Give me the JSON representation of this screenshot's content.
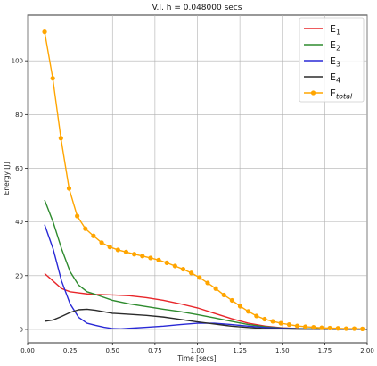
{
  "chart_data": {
    "type": "line",
    "title": "V.I. h = 0.048000 secs",
    "xlabel": "Time [secs]",
    "ylabel": "Energy [J]",
    "xlim": [
      0.0,
      2.0
    ],
    "ylim": [
      -5,
      117
    ],
    "xticks": [
      0.0,
      0.25,
      0.5,
      0.75,
      1.0,
      1.25,
      1.5,
      1.75,
      2.0
    ],
    "xtick_labels": [
      "0.00",
      "0.25",
      "0.50",
      "0.75",
      "1.00",
      "1.25",
      "1.50",
      "1.75",
      "2.00"
    ],
    "yticks": [
      0,
      20,
      40,
      60,
      80,
      100
    ],
    "ytick_labels": [
      "0",
      "20",
      "40",
      "60",
      "80",
      "100"
    ],
    "grid": true,
    "legend_position": "top-right",
    "series": [
      {
        "base": "E",
        "sub": "1",
        "color": "#e8262a",
        "marker": "none",
        "x": [
          0.1,
          0.15,
          0.2,
          0.25,
          0.3,
          0.35,
          0.4,
          0.5,
          0.6,
          0.7,
          0.8,
          0.9,
          1.0,
          1.1,
          1.2,
          1.3,
          1.4,
          1.5,
          1.6,
          1.7,
          1.8,
          1.9,
          2.0
        ],
        "y": [
          20.8,
          18.0,
          15.2,
          14.0,
          13.6,
          13.2,
          13.0,
          12.8,
          12.5,
          11.8,
          10.8,
          9.5,
          8.0,
          6.0,
          4.0,
          2.3,
          1.2,
          0.6,
          0.3,
          0.2,
          0.1,
          0.1,
          0.1
        ]
      },
      {
        "base": "E",
        "sub": "2",
        "color": "#2e8b2e",
        "marker": "none",
        "x": [
          0.1,
          0.15,
          0.2,
          0.25,
          0.3,
          0.35,
          0.4,
          0.5,
          0.6,
          0.7,
          0.8,
          0.9,
          1.0,
          1.1,
          1.2,
          1.3,
          1.4,
          1.5,
          1.6,
          1.7,
          1.8,
          1.9,
          2.0
        ],
        "y": [
          48.2,
          40.0,
          30.0,
          21.5,
          16.5,
          14.0,
          13.0,
          10.8,
          9.5,
          8.5,
          7.5,
          6.6,
          5.5,
          4.3,
          3.0,
          1.8,
          1.0,
          0.5,
          0.3,
          0.2,
          0.1,
          0.1,
          0.1
        ]
      },
      {
        "base": "E",
        "sub": "3",
        "color": "#2929d6",
        "marker": "none",
        "x": [
          0.1,
          0.15,
          0.2,
          0.25,
          0.3,
          0.35,
          0.4,
          0.45,
          0.5,
          0.55,
          0.6,
          0.7,
          0.8,
          0.9,
          1.0,
          1.1,
          1.2,
          1.3,
          1.4,
          1.5,
          1.6,
          1.7,
          1.8,
          1.9,
          2.0
        ],
        "y": [
          39.0,
          30.0,
          18.0,
          9.5,
          4.5,
          2.3,
          1.5,
          0.8,
          0.3,
          0.2,
          0.4,
          0.8,
          1.2,
          1.8,
          2.3,
          2.3,
          1.8,
          1.2,
          0.7,
          0.4,
          0.2,
          0.1,
          0.1,
          0.1,
          0.1
        ]
      },
      {
        "base": "E",
        "sub": "4",
        "color": "#2b2b2b",
        "marker": "none",
        "x": [
          0.1,
          0.15,
          0.2,
          0.25,
          0.3,
          0.35,
          0.4,
          0.5,
          0.6,
          0.7,
          0.8,
          0.9,
          1.0,
          1.1,
          1.2,
          1.3,
          1.4,
          1.5,
          1.6,
          1.7,
          1.8,
          1.9,
          2.0
        ],
        "y": [
          3.0,
          3.5,
          4.8,
          6.3,
          7.3,
          7.5,
          7.1,
          6.0,
          5.6,
          5.2,
          4.6,
          3.7,
          2.8,
          2.0,
          1.2,
          0.7,
          0.3,
          0.2,
          0.1,
          0.1,
          0.1,
          0.1,
          0.1
        ]
      },
      {
        "base": "E",
        "sub": "total",
        "color": "#ffa500",
        "marker": "circle",
        "x": [
          0.1,
          0.148,
          0.196,
          0.244,
          0.292,
          0.34,
          0.388,
          0.436,
          0.484,
          0.532,
          0.58,
          0.628,
          0.676,
          0.724,
          0.772,
          0.82,
          0.868,
          0.916,
          0.964,
          1.012,
          1.06,
          1.108,
          1.156,
          1.204,
          1.252,
          1.3,
          1.348,
          1.396,
          1.444,
          1.492,
          1.54,
          1.588,
          1.636,
          1.684,
          1.732,
          1.78,
          1.828,
          1.876,
          1.924,
          1.972
        ],
        "y": [
          110.8,
          93.5,
          71.2,
          52.5,
          42.2,
          37.5,
          34.8,
          32.3,
          30.7,
          29.6,
          28.8,
          28.0,
          27.3,
          26.6,
          25.8,
          24.8,
          23.6,
          22.4,
          21.0,
          19.3,
          17.3,
          15.2,
          12.8,
          10.8,
          8.6,
          6.7,
          5.0,
          3.8,
          3.0,
          2.3,
          1.8,
          1.3,
          1.0,
          0.8,
          0.6,
          0.5,
          0.4,
          0.3,
          0.3,
          0.2
        ]
      }
    ]
  }
}
